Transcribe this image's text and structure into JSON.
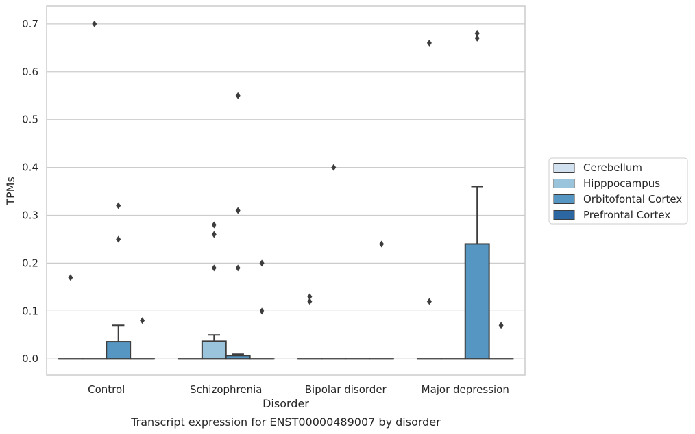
{
  "chart_data": {
    "type": "box",
    "title": "",
    "caption": "Transcript expression for ENST00000489007 by disorder",
    "xlabel": "Disorder",
    "ylabel": "TPMs",
    "ylim": [
      -0.034,
      0.737
    ],
    "yticks": [
      0.0,
      0.1,
      0.2,
      0.3,
      0.4,
      0.5,
      0.6,
      0.7
    ],
    "ytick_labels": [
      "0.0",
      "0.1",
      "0.2",
      "0.3",
      "0.4",
      "0.5",
      "0.6",
      "0.7"
    ],
    "grid": "horizontal",
    "legend_position": "right",
    "categories": [
      "Control",
      "Schizophrenia",
      "Bipolar disorder",
      "Major depression"
    ],
    "series": [
      {
        "name": "Cerebellum",
        "color": "#d1e1ef",
        "boxes": [
          {
            "q1": 0,
            "median": 0,
            "q3": 0,
            "whisker_low": 0,
            "whisker_high": 0
          },
          {
            "q1": 0,
            "median": 0,
            "q3": 0,
            "whisker_low": 0,
            "whisker_high": 0
          },
          {
            "q1": 0,
            "median": 0,
            "q3": 0,
            "whisker_low": 0,
            "whisker_high": 0
          },
          {
            "q1": 0,
            "median": 0,
            "q3": 0,
            "whisker_low": 0,
            "whisker_high": 0
          }
        ],
        "outliers": [
          [
            0.17
          ],
          [],
          [
            0.12,
            0.13
          ],
          [
            0.12,
            0.66
          ]
        ]
      },
      {
        "name": "Hipppocampus",
        "color": "#9ac3dc",
        "boxes": [
          {
            "q1": 0,
            "median": 0,
            "q3": 0,
            "whisker_low": 0,
            "whisker_high": 0
          },
          {
            "q1": 0,
            "median": 0,
            "q3": 0.037,
            "whisker_low": 0,
            "whisker_high": 0.05
          },
          {
            "q1": 0,
            "median": 0,
            "q3": 0,
            "whisker_low": 0,
            "whisker_high": 0
          },
          {
            "q1": 0,
            "median": 0,
            "q3": 0,
            "whisker_low": 0,
            "whisker_high": 0
          }
        ],
        "outliers": [
          [
            0.7
          ],
          [
            0.19,
            0.26,
            0.28
          ],
          [
            0.4
          ],
          []
        ]
      },
      {
        "name": "Orbitofontal Cortex",
        "color": "#5596c3",
        "boxes": [
          {
            "q1": 0,
            "median": 0,
            "q3": 0.036,
            "whisker_low": 0,
            "whisker_high": 0.07
          },
          {
            "q1": 0,
            "median": 0,
            "q3": 0.007,
            "whisker_low": 0,
            "whisker_high": 0.01
          },
          {
            "q1": 0,
            "median": 0,
            "q3": 0,
            "whisker_low": 0,
            "whisker_high": 0
          },
          {
            "q1": 0,
            "median": 0,
            "q3": 0.24,
            "whisker_low": 0,
            "whisker_high": 0.36
          }
        ],
        "outliers": [
          [
            0.25,
            0.32
          ],
          [
            0.19,
            0.31,
            0.55
          ],
          [],
          [
            0.67,
            0.68
          ]
        ]
      },
      {
        "name": "Prefrontal Cortex",
        "color": "#2c67a2",
        "boxes": [
          {
            "q1": 0,
            "median": 0,
            "q3": 0,
            "whisker_low": 0,
            "whisker_high": 0
          },
          {
            "q1": 0,
            "median": 0,
            "q3": 0,
            "whisker_low": 0,
            "whisker_high": 0
          },
          {
            "q1": 0,
            "median": 0,
            "q3": 0,
            "whisker_low": 0,
            "whisker_high": 0
          },
          {
            "q1": 0,
            "median": 0,
            "q3": 0,
            "whisker_low": 0,
            "whisker_high": 0
          }
        ],
        "outliers": [
          [
            0.08
          ],
          [
            0.1,
            0.2
          ],
          [
            0.24
          ],
          [
            0.07
          ]
        ]
      }
    ]
  }
}
